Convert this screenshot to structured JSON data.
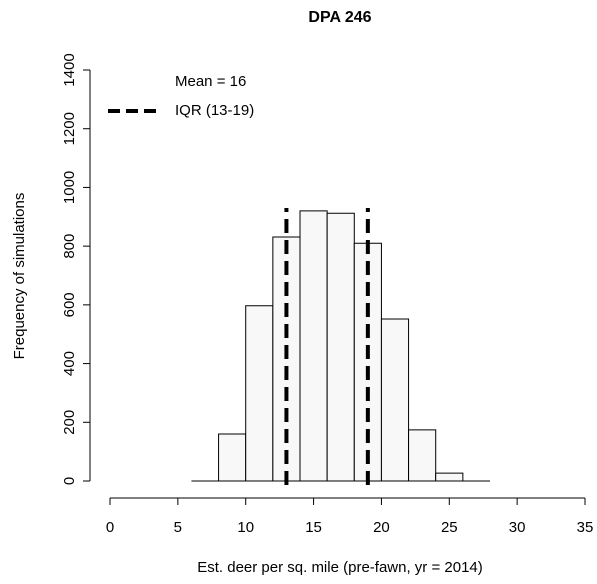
{
  "chart_data": {
    "type": "histogram",
    "title": "DPA 246",
    "xlabel": "Est. deer per sq. mile (pre-fawn, yr = 2014)",
    "ylabel": "Frequency of simulations",
    "bins": [
      6,
      8,
      10,
      12,
      14,
      16,
      18,
      20,
      22,
      24,
      26,
      28
    ],
    "counts": [
      0,
      160,
      597,
      831,
      920,
      912,
      810,
      552,
      174,
      27,
      0
    ],
    "color": "#f8f8f8",
    "vlines": [
      13,
      19
    ],
    "legend": [
      "Mean = 16",
      "IQR (13-19)"
    ],
    "xlim": [
      0,
      35
    ],
    "xticks": [
      0,
      5,
      10,
      15,
      20,
      25,
      30,
      35
    ],
    "ylim": [
      0,
      1400
    ],
    "yticks": [
      0,
      200,
      400,
      600,
      800,
      1000,
      1200,
      1400
    ]
  }
}
